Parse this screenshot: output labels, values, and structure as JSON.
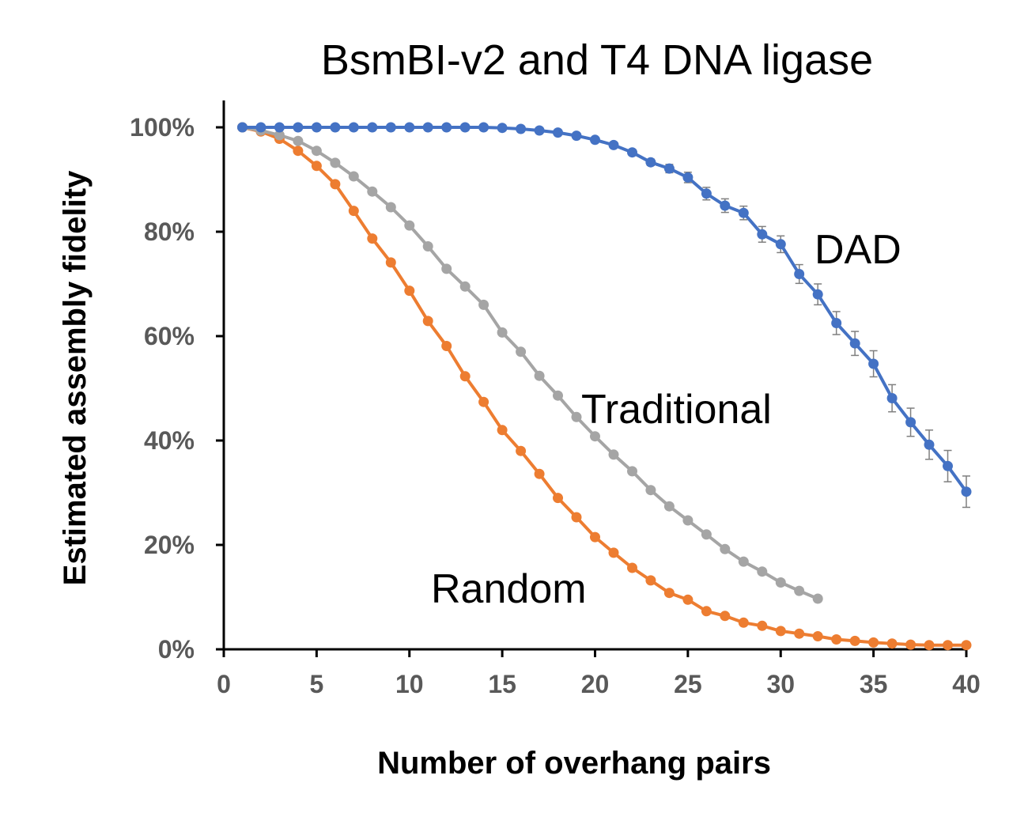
{
  "chart_data": {
    "type": "line",
    "title": "BsmBI-v2 and T4 DNA ligase",
    "xlabel": "Number of overhang pairs",
    "ylabel": "Estimated assembly fidelity",
    "xlim": [
      0,
      40
    ],
    "ylim": [
      0,
      100
    ],
    "x_ticks": [
      "0",
      "5",
      "10",
      "15",
      "20",
      "25",
      "30",
      "35",
      "40"
    ],
    "y_ticks": [
      "0%",
      "20%",
      "40%",
      "60%",
      "80%",
      "100%"
    ],
    "grid": false,
    "legend": "none",
    "series": [
      {
        "name": "DAD",
        "color": "#4472C4",
        "x": [
          1,
          2,
          3,
          4,
          5,
          6,
          7,
          8,
          9,
          10,
          11,
          12,
          13,
          14,
          15,
          16,
          17,
          18,
          19,
          20,
          21,
          22,
          23,
          24,
          25,
          26,
          27,
          28,
          29,
          30,
          31,
          32,
          33,
          34,
          35,
          36,
          37,
          38,
          39,
          40
        ],
        "values": [
          100,
          100,
          100,
          100,
          100,
          100,
          100,
          100,
          100,
          100,
          100,
          100,
          100,
          100,
          99.9,
          99.7,
          99.4,
          99.0,
          98.4,
          97.6,
          96.6,
          95.2,
          93.3,
          92.1,
          90.4,
          87.3,
          85.0,
          83.6,
          79.5,
          77.6,
          71.9,
          68.0,
          62.5,
          58.6,
          54.7,
          48.1,
          43.5,
          39.2,
          35.1,
          30.2
        ],
        "error": [
          0,
          0,
          0,
          0,
          0,
          0,
          0,
          0,
          0,
          0,
          0,
          0,
          0,
          0,
          0,
          0,
          0,
          0,
          0,
          0,
          0,
          0.3,
          0.6,
          0.8,
          1.0,
          1.2,
          1.3,
          1.3,
          1.5,
          1.6,
          1.8,
          2.0,
          2.2,
          2.3,
          2.5,
          2.6,
          2.7,
          2.8,
          3.0,
          3.0
        ]
      },
      {
        "name": "Traditional",
        "color": "#A5A5A5",
        "x": [
          1,
          2,
          3,
          4,
          5,
          6,
          7,
          8,
          9,
          10,
          11,
          12,
          13,
          14,
          15,
          16,
          17,
          18,
          19,
          20,
          21,
          22,
          23,
          24,
          25,
          26,
          27,
          28,
          29,
          30,
          31,
          32
        ],
        "values": [
          100,
          99.4,
          98.5,
          97.4,
          95.5,
          93.2,
          90.6,
          87.7,
          84.7,
          81.2,
          77.2,
          72.9,
          69.5,
          66.0,
          60.7,
          57.0,
          52.4,
          48.6,
          44.5,
          40.8,
          37.3,
          34.1,
          30.5,
          27.4,
          24.7,
          22.0,
          19.2,
          16.8,
          14.9,
          12.8,
          11.2,
          9.7
        ]
      },
      {
        "name": "Random",
        "color": "#ED7D31",
        "x": [
          1,
          2,
          3,
          4,
          5,
          6,
          7,
          8,
          9,
          10,
          11,
          12,
          13,
          14,
          15,
          16,
          17,
          18,
          19,
          20,
          21,
          22,
          23,
          24,
          25,
          26,
          27,
          28,
          29,
          30,
          31,
          32,
          33,
          34,
          35,
          36,
          37,
          38,
          39,
          40
        ],
        "values": [
          100,
          99.2,
          97.8,
          95.5,
          92.6,
          89.1,
          84.0,
          78.7,
          74.1,
          68.7,
          62.9,
          58.1,
          52.3,
          47.4,
          42.0,
          38.0,
          33.6,
          29.0,
          25.3,
          21.5,
          18.5,
          15.6,
          13.2,
          10.8,
          9.5,
          7.3,
          6.4,
          5.1,
          4.5,
          3.5,
          3.0,
          2.5,
          1.9,
          1.6,
          1.3,
          1.1,
          0.9,
          0.8,
          0.8,
          0.8
        ]
      }
    ]
  }
}
